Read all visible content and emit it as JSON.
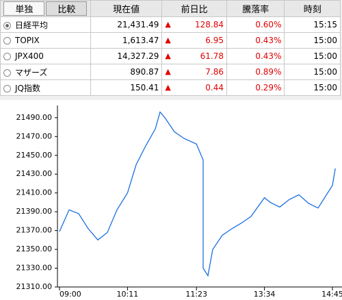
{
  "table": {
    "tabs": [
      "単独",
      "比較"
    ],
    "headers": [
      "現在値",
      "前日比",
      "騰落率",
      "時刻"
    ],
    "rows": [
      [
        "日経平均",
        "21,431.49",
        "128.84",
        "0.60%",
        "15:15"
      ],
      [
        "TOPIX",
        "1,613.47",
        "6.95",
        "0.43%",
        "15:00"
      ],
      [
        "JPX400",
        "14,327.29",
        "61.78",
        "0.43%",
        "15:00"
      ],
      [
        "マザーズ",
        "890.87",
        "7.86",
        "0.89%",
        "15:00"
      ],
      [
        "JQ指数",
        "150.41",
        "0.44",
        "0.29%",
        "15:00"
      ]
    ]
  },
  "chart_data": {
    "type": "line",
    "color": "#1a6fe0",
    "x": [
      "09:00",
      "09:10",
      "09:20",
      "09:30",
      "09:40",
      "09:50",
      "10:00",
      "10:11",
      "10:20",
      "10:30",
      "10:40",
      "10:45",
      "10:50",
      "11:00",
      "11:10",
      "11:23",
      "11:30",
      "12:30",
      "12:35",
      "12:40",
      "12:50",
      "13:00",
      "13:10",
      "13:20",
      "13:34",
      "13:40",
      "13:50",
      "14:00",
      "14:10",
      "14:20",
      "14:30",
      "14:45",
      "14:48"
    ],
    "values": [
      21369,
      21392,
      21388,
      21372,
      21360,
      21368,
      21392,
      21410,
      21440,
      21460,
      21478,
      21496,
      21490,
      21475,
      21468,
      21462,
      21445,
      21330,
      21322,
      21350,
      21365,
      21372,
      21378,
      21385,
      21405,
      21400,
      21395,
      21403,
      21408,
      21399,
      21394,
      21418,
      21436
    ],
    "ylim": [
      21310,
      21503
    ],
    "yticks": [
      {
        "value": 21310,
        "label": "21310.00"
      },
      {
        "value": 21330,
        "label": "21330.00"
      },
      {
        "value": 21350,
        "label": "21350.00"
      },
      {
        "value": 21370,
        "label": "21370.00"
      },
      {
        "value": 21390,
        "label": "21390.00"
      },
      {
        "value": 21410,
        "label": "21410.00"
      },
      {
        "value": 21430,
        "label": "21430.00"
      },
      {
        "value": 21450,
        "label": "21450.00"
      },
      {
        "value": 21470,
        "label": "21470.00"
      },
      {
        "value": 21490,
        "label": "21490.00"
      }
    ],
    "xticks": [
      "09:00",
      "10:11",
      "11:23",
      "13:34",
      "14:45"
    ]
  }
}
